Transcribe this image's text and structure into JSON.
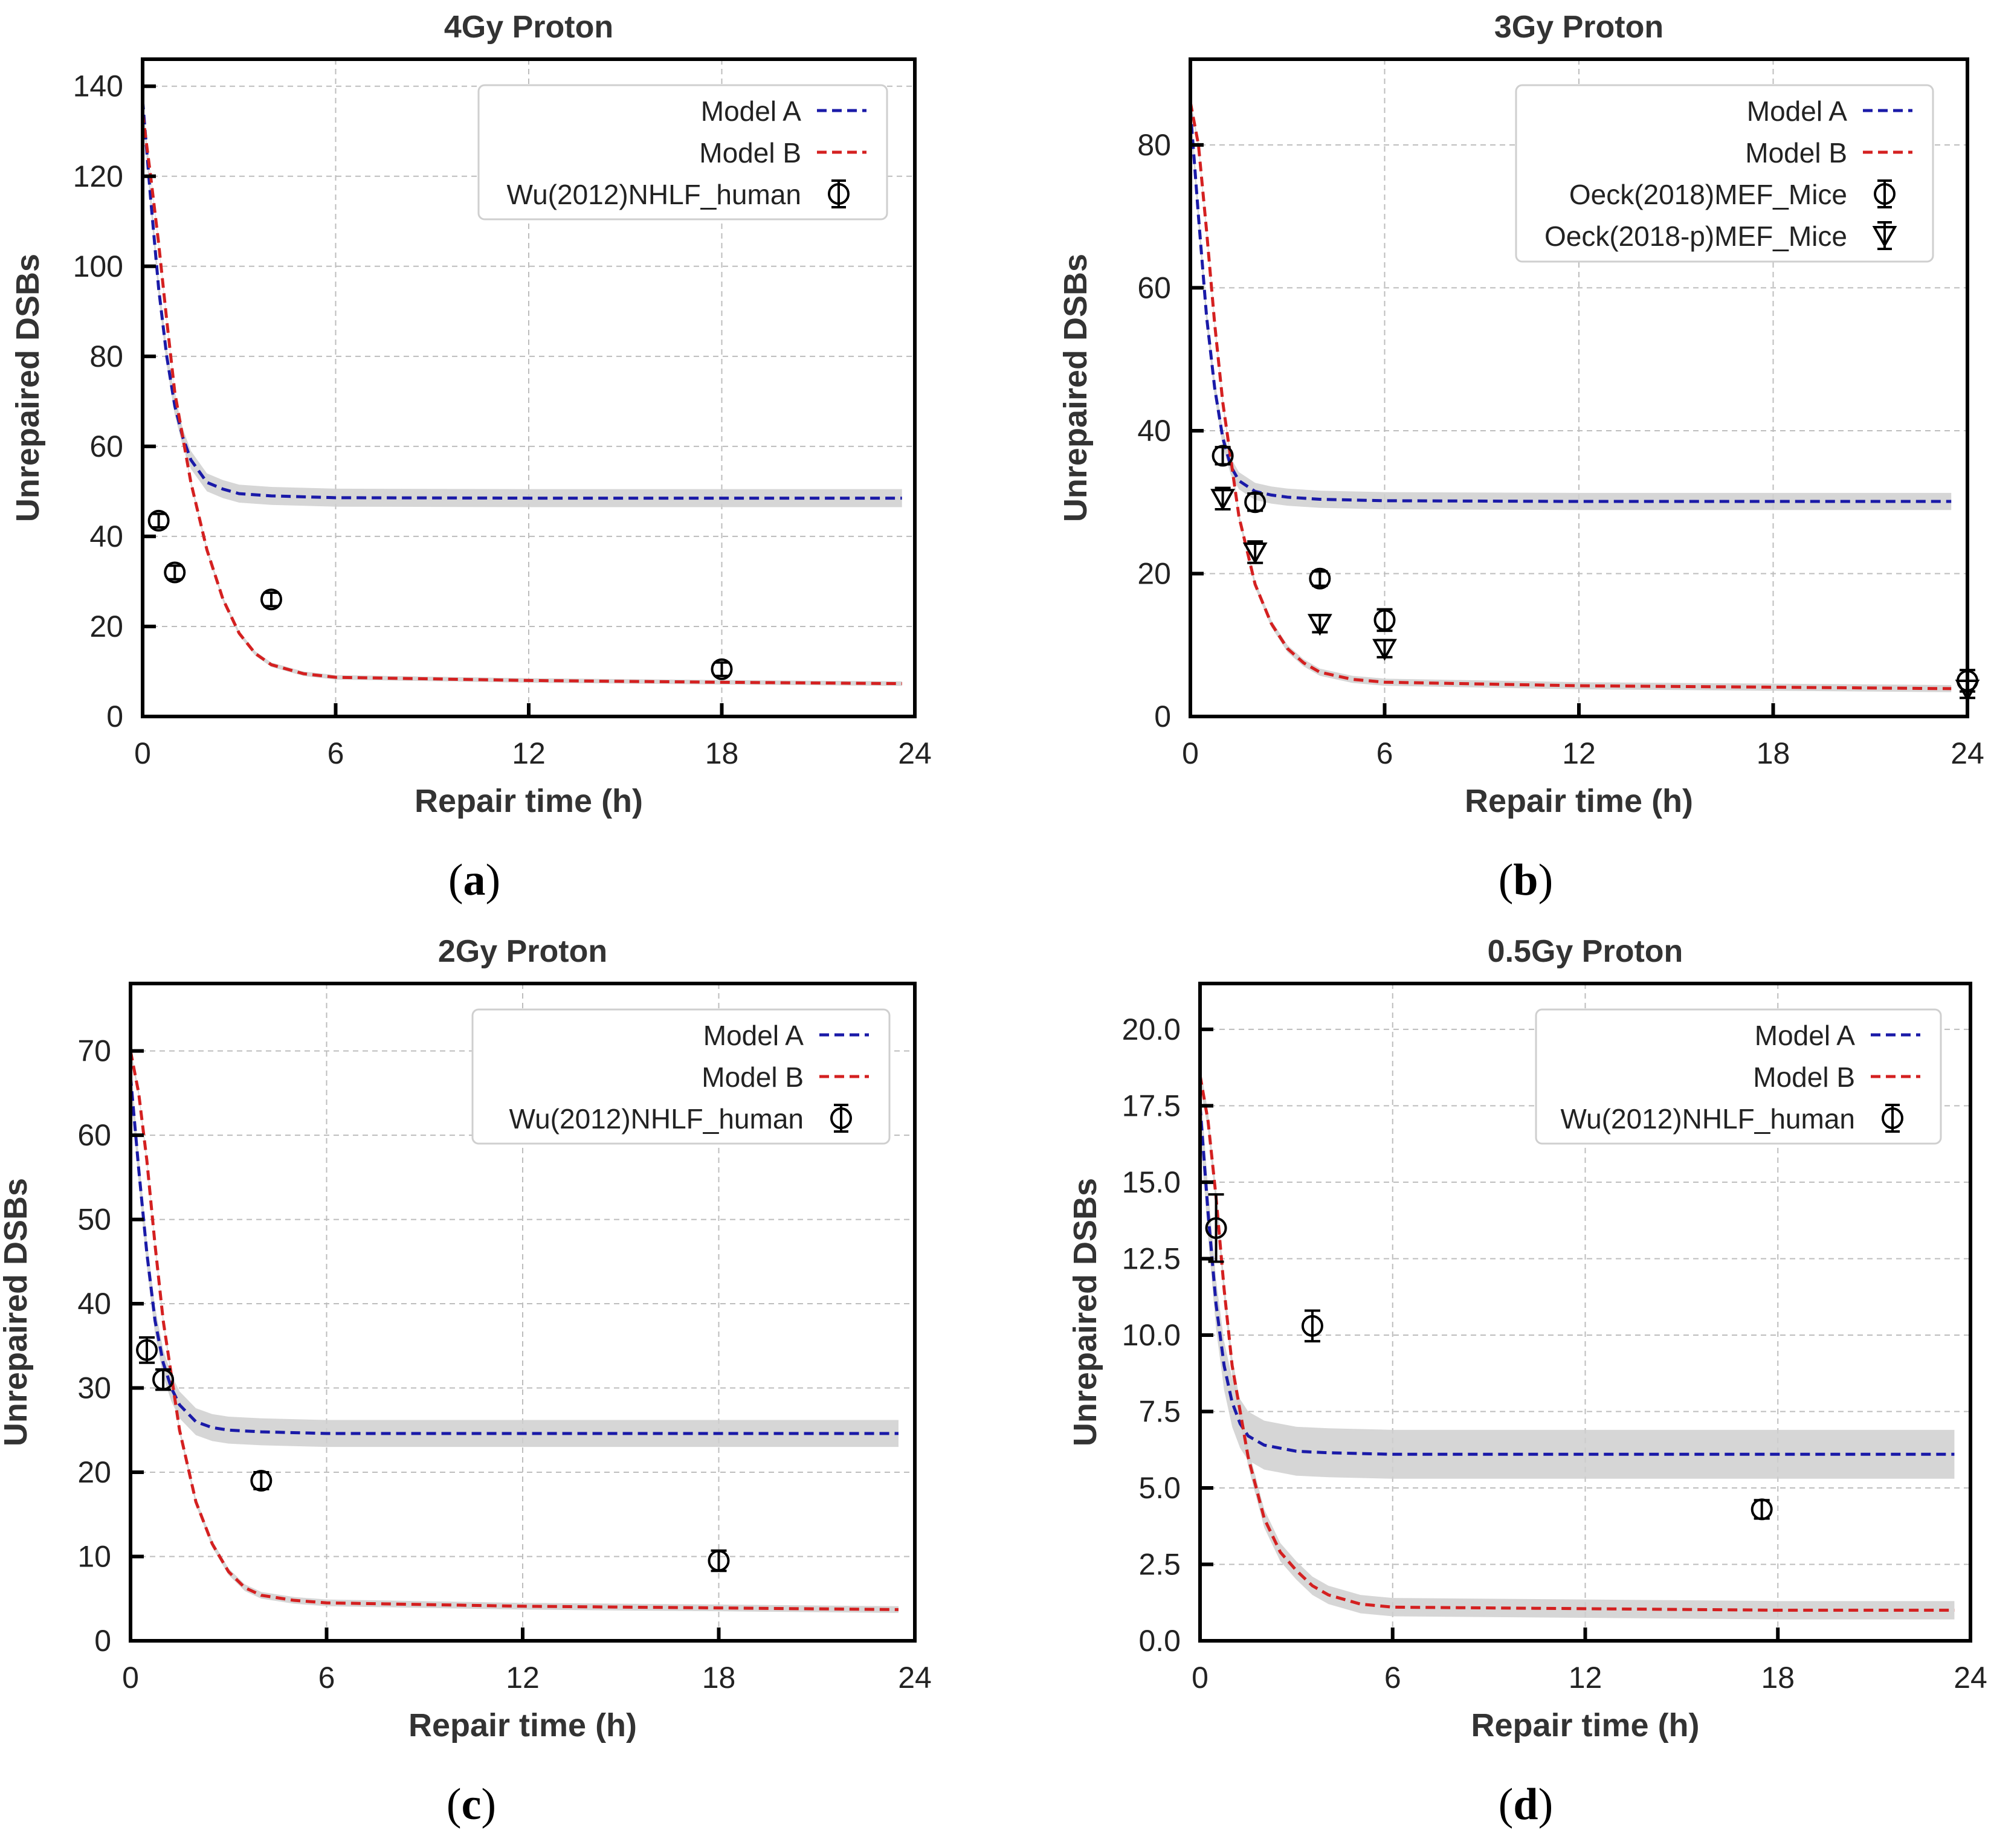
{
  "colors": {
    "model_a": "#1a1aa8",
    "model_b": "#d42020",
    "band": "#cfcfcf",
    "grid": "#bdbdbd",
    "data": "#000000"
  },
  "chart_data": [
    {
      "id": "a",
      "panel_label": "(a)",
      "panel_letter": "a",
      "type": "line",
      "title": "4Gy Proton",
      "xlabel": "Repair time (h)",
      "ylabel": "Unrepaired DSBs",
      "xlim": [
        0,
        24
      ],
      "ylim": [
        0,
        146
      ],
      "xticks": [
        0,
        6,
        12,
        18,
        24
      ],
      "yticks": [
        0,
        20,
        40,
        60,
        80,
        100,
        120,
        140
      ],
      "ytick_labels": [
        "0",
        "20",
        "40",
        "60",
        "80",
        "100",
        "120",
        "140"
      ],
      "grid": true,
      "legend_position": "top-right",
      "series": [
        {
          "name": "Model A",
          "kind": "model",
          "color_key": "model_a",
          "x": [
            0,
            0.25,
            0.5,
            0.75,
            1,
            1.25,
            1.5,
            2,
            2.5,
            3,
            4,
            6,
            12,
            18,
            23.6
          ],
          "y": [
            137,
            115,
            95,
            80,
            69,
            62,
            57,
            52,
            50.5,
            49.5,
            49,
            48.6,
            48.5,
            48.5,
            48.5
          ],
          "band": 2
        },
        {
          "name": "Model B",
          "kind": "model",
          "color_key": "model_b",
          "x": [
            0,
            0.25,
            0.5,
            0.75,
            1,
            1.5,
            2,
            2.5,
            3,
            3.5,
            4,
            5,
            6,
            12,
            18,
            23.6
          ],
          "y": [
            134,
            120,
            105,
            88,
            72,
            52,
            37,
            26,
            18.5,
            14,
            11.5,
            9.5,
            8.7,
            8,
            7.6,
            7.3
          ],
          "band": 0.5
        },
        {
          "name": "Wu(2012)NHLF_human",
          "kind": "data",
          "marker": "circle",
          "x": [
            0.5,
            1,
            4,
            18
          ],
          "y": [
            43.5,
            32,
            26,
            10.5
          ],
          "err": [
            1.5,
            1.5,
            1.5,
            1.5
          ]
        }
      ]
    },
    {
      "id": "b",
      "panel_label": "(b)",
      "panel_letter": "b",
      "type": "line",
      "title": "3Gy Proton",
      "xlabel": "Repair time (h)",
      "ylabel": "Unrepaired DSBs",
      "xlim": [
        0,
        24
      ],
      "ylim": [
        0,
        92
      ],
      "xticks": [
        0,
        6,
        12,
        18,
        24
      ],
      "yticks": [
        0,
        20,
        40,
        60,
        80
      ],
      "ytick_labels": [
        "0",
        "20",
        "40",
        "60",
        "80"
      ],
      "grid": true,
      "legend_position": "top-right",
      "series": [
        {
          "name": "Model A",
          "kind": "model",
          "color_key": "model_a",
          "x": [
            0,
            0.25,
            0.5,
            0.75,
            1,
            1.25,
            1.5,
            2,
            2.5,
            3,
            4,
            6,
            12,
            18,
            23.5
          ],
          "y": [
            85,
            70,
            56,
            46,
            39,
            35,
            33,
            31.5,
            31,
            30.7,
            30.4,
            30.2,
            30.1,
            30.1,
            30.1
          ],
          "band": 1.2
        },
        {
          "name": "Model B",
          "kind": "model",
          "color_key": "model_b",
          "x": [
            0,
            0.25,
            0.5,
            0.75,
            1,
            1.5,
            2,
            2.5,
            3,
            3.5,
            4,
            5,
            6,
            12,
            18,
            23.5
          ],
          "y": [
            86,
            80,
            68,
            55,
            44,
            28,
            18.5,
            13,
            9.5,
            7.5,
            6.2,
            5.2,
            4.8,
            4.3,
            4.1,
            3.9
          ],
          "band": 0.5
        },
        {
          "name": "Oeck(2018)MEF_Mice",
          "kind": "data",
          "marker": "circle",
          "x": [
            1,
            2,
            4,
            6,
            24
          ],
          "y": [
            36.5,
            30,
            19.3,
            13.5,
            5
          ],
          "err": [
            1.2,
            1.2,
            1.0,
            1.5,
            1.5
          ]
        },
        {
          "name": "Oeck(2018-p)MEF_Mice",
          "kind": "data",
          "marker": "triangle",
          "x": [
            1,
            2,
            4,
            6,
            24
          ],
          "y": [
            30.5,
            23,
            13,
            9.5,
            3.8
          ],
          "err": [
            1.5,
            1.5,
            1.2,
            1.2,
            1.2
          ]
        }
      ]
    },
    {
      "id": "c",
      "panel_label": "(c)",
      "panel_letter": "c",
      "type": "line",
      "title": "2Gy Proton",
      "xlabel": "Repair time (h)",
      "ylabel": "Unrepaired DSBs",
      "xlim": [
        0,
        24
      ],
      "ylim": [
        0,
        78
      ],
      "xticks": [
        0,
        6,
        12,
        18,
        24
      ],
      "yticks": [
        0,
        10,
        20,
        30,
        40,
        50,
        60,
        70
      ],
      "ytick_labels": [
        "0",
        "10",
        "20",
        "30",
        "40",
        "50",
        "60",
        "70"
      ],
      "grid": true,
      "legend_position": "top-right",
      "series": [
        {
          "name": "Model A",
          "kind": "model",
          "color_key": "model_a",
          "x": [
            0,
            0.25,
            0.5,
            0.75,
            1,
            1.25,
            1.5,
            2,
            2.5,
            3,
            4,
            6,
            12,
            18,
            23.5
          ],
          "y": [
            67,
            56,
            46,
            38,
            33,
            30,
            28,
            26,
            25.3,
            25,
            24.8,
            24.6,
            24.6,
            24.6,
            24.6
          ],
          "band": 1.6
        },
        {
          "name": "Model B",
          "kind": "model",
          "color_key": "model_b",
          "x": [
            0,
            0.25,
            0.5,
            0.75,
            1,
            1.5,
            2,
            2.5,
            3,
            3.5,
            4,
            5,
            6,
            12,
            18,
            23.5
          ],
          "y": [
            70,
            65,
            57,
            47,
            38,
            25,
            16.5,
            11.5,
            8.2,
            6.3,
            5.4,
            4.8,
            4.5,
            4.1,
            3.9,
            3.7
          ],
          "band": 0.4
        },
        {
          "name": "Wu(2012)NHLF_human",
          "kind": "data",
          "marker": "circle",
          "x": [
            0.5,
            1,
            4,
            18
          ],
          "y": [
            34.5,
            31,
            19,
            9.5
          ],
          "err": [
            1.5,
            1.2,
            1.0,
            1.2
          ]
        }
      ]
    },
    {
      "id": "d",
      "panel_label": "(d)",
      "panel_letter": "d",
      "type": "line",
      "title": "0.5Gy Proton",
      "xlabel": "Repair time (h)",
      "ylabel": "Unrepaired DSBs",
      "xlim": [
        0,
        24
      ],
      "ylim": [
        0,
        21.5
      ],
      "xticks": [
        0,
        6,
        12,
        18,
        24
      ],
      "yticks": [
        0,
        2.5,
        5,
        7.5,
        10,
        12.5,
        15,
        17.5,
        20
      ],
      "ytick_labels": [
        "0.0",
        "2.5",
        "5.0",
        "7.5",
        "10.0",
        "12.5",
        "15.0",
        "17.5",
        "20.0"
      ],
      "grid": true,
      "legend_position": "top-right",
      "series": [
        {
          "name": "Model A",
          "kind": "model",
          "color_key": "model_a",
          "x": [
            0,
            0.25,
            0.5,
            0.75,
            1,
            1.25,
            1.5,
            2,
            2.5,
            3,
            4,
            6,
            12,
            18,
            23.5
          ],
          "y": [
            17.5,
            14,
            11,
            9,
            7.8,
            7.1,
            6.7,
            6.4,
            6.3,
            6.2,
            6.15,
            6.1,
            6.1,
            6.1,
            6.1
          ],
          "band": 0.8
        },
        {
          "name": "Model B",
          "kind": "model",
          "color_key": "model_b",
          "x": [
            0,
            0.25,
            0.5,
            0.75,
            1,
            1.5,
            2,
            2.5,
            3,
            3.5,
            4,
            5,
            6,
            12,
            18,
            23.5
          ],
          "y": [
            18.5,
            17,
            14.5,
            11.5,
            9,
            6,
            4,
            2.9,
            2.3,
            1.8,
            1.5,
            1.2,
            1.1,
            1.05,
            1.0,
            1.0
          ],
          "band": 0.3
        },
        {
          "name": "Wu(2012)NHLF_human",
          "kind": "data",
          "marker": "circle",
          "x": [
            0.5,
            3.5,
            17.5
          ],
          "y": [
            13.5,
            10.3,
            4.3
          ],
          "err": [
            1.1,
            0.5,
            0.3
          ]
        }
      ]
    }
  ]
}
